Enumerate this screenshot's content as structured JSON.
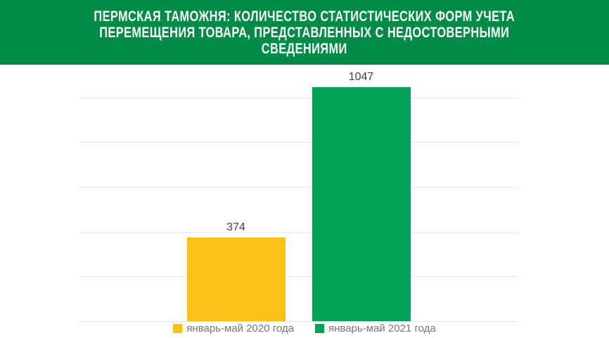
{
  "header": {
    "title": "ПЕРМСКАЯ ТАМОЖНЯ: КОЛИЧЕСТВО СТАТИСТИЧЕСКИХ ФОРМ УЧЕТА ПЕРЕМЕЩЕНИЯ ТОВАРА, ПРЕДСТАВЛЕННЫХ С НЕДОСТОВЕРНЫМИ СВЕДЕНИЯМИ",
    "title_lines": [
      "ПЕРМСКАЯ ТАМОЖНЯ: КОЛИЧЕСТВО СТАТИСТИЧЕСКИХ ФОРМ УЧЕТА",
      "ПЕРЕМЕЩЕНИЯ ТОВАРА, ПРЕДСТАВЛЕННЫХ С НЕДОСТОВЕРНЫМИ",
      "СВЕДЕНИЯМИ"
    ],
    "background_color": "#008C46",
    "text_color": "#FFFFFF"
  },
  "chart_data": {
    "type": "bar",
    "title": "ПЕРМСКАЯ ТАМОЖНЯ: КОЛИЧЕСТВО СТАТИСТИЧЕСКИХ ФОРМ УЧЕТА ПЕРЕМЕЩЕНИЯ ТОВАРА, ПРЕДСТАВЛЕННЫХ С НЕДОСТОВЕРНЫМИ СВЕДЕНИЯМИ",
    "categories": [
      ""
    ],
    "series": [
      {
        "name": "январь-май 2020 года",
        "values": [
          374
        ],
        "color": "#FBC116"
      },
      {
        "name": "январь-май 2021 года",
        "values": [
          1047
        ],
        "color": "#00A355"
      }
    ],
    "data_labels": [
      "374",
      "1047"
    ],
    "xlabel": "",
    "ylabel": "",
    "ylim": [
      0,
      1100
    ],
    "gridline_step": 200,
    "grid": true,
    "gridline_color": "#E4E4E4",
    "value_label_color": "#424242",
    "legend_position": "bottom",
    "legend_text_color": "#757575"
  }
}
